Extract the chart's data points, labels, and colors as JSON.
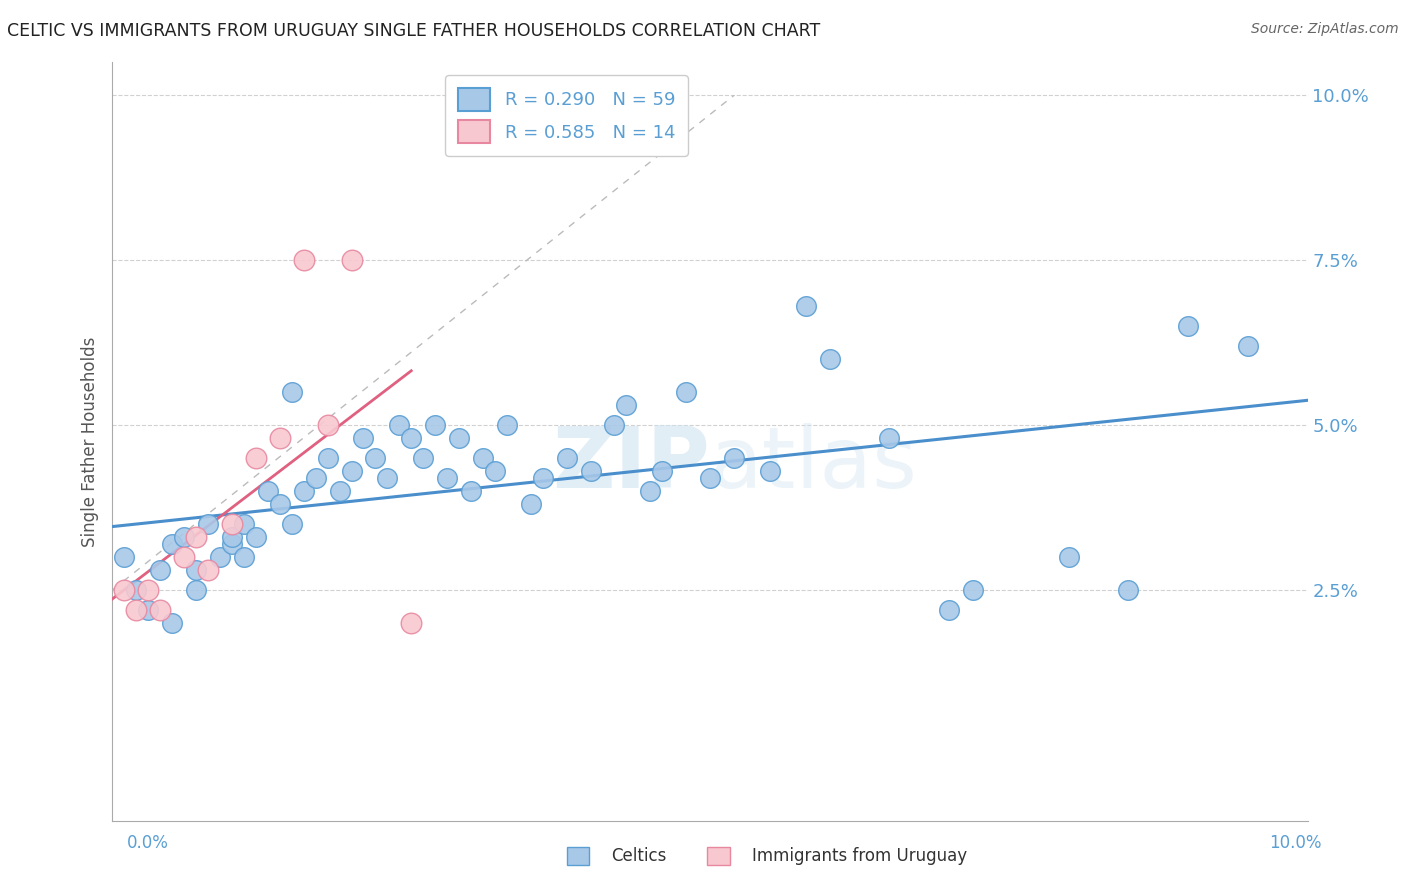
{
  "title": "CELTIC VS IMMIGRANTS FROM URUGUAY SINGLE FATHER HOUSEHOLDS CORRELATION CHART",
  "source": "Source: ZipAtlas.com",
  "ylabel": "Single Father Households",
  "legend_entry1": "R = 0.290   N = 59",
  "legend_entry2": "R = 0.585   N = 14",
  "legend_label1": "Celtics",
  "legend_label2": "Immigrants from Uruguay",
  "celtics_color": "#a8c8e8",
  "celtics_edge_color": "#5a9fd4",
  "celtics_line_color": "#4a8fcc",
  "uruguay_color": "#f8c8d0",
  "uruguay_edge_color": "#e888a0",
  "uruguay_line_color": "#e06080",
  "watermark_color": "#d0e4f0",
  "background_color": "#ffffff",
  "grid_color": "#cccccc",
  "tick_color": "#5a9fd4",
  "title_color": "#222222",
  "source_color": "#666666",
  "ylabel_color": "#555555",
  "xlim": [
    0.0,
    0.1
  ],
  "ylim": [
    -0.01,
    0.105
  ],
  "ytick_vals": [
    0.025,
    0.05,
    0.075,
    0.1
  ],
  "ytick_labels": [
    "2.5%",
    "5.0%",
    "7.5%",
    "10.0%"
  ],
  "celtics_x": [
    0.001,
    0.002,
    0.003,
    0.004,
    0.005,
    0.005,
    0.006,
    0.007,
    0.007,
    0.008,
    0.009,
    0.01,
    0.01,
    0.011,
    0.011,
    0.012,
    0.013,
    0.014,
    0.015,
    0.015,
    0.016,
    0.017,
    0.018,
    0.019,
    0.02,
    0.021,
    0.022,
    0.023,
    0.024,
    0.025,
    0.026,
    0.027,
    0.028,
    0.029,
    0.03,
    0.031,
    0.032,
    0.033,
    0.035,
    0.036,
    0.038,
    0.04,
    0.042,
    0.043,
    0.045,
    0.046,
    0.048,
    0.05,
    0.052,
    0.055,
    0.058,
    0.06,
    0.065,
    0.07,
    0.072,
    0.08,
    0.085,
    0.09,
    0.095
  ],
  "celtics_y": [
    0.03,
    0.025,
    0.022,
    0.028,
    0.032,
    0.02,
    0.033,
    0.028,
    0.025,
    0.035,
    0.03,
    0.032,
    0.033,
    0.035,
    0.03,
    0.033,
    0.04,
    0.038,
    0.035,
    0.055,
    0.04,
    0.042,
    0.045,
    0.04,
    0.043,
    0.048,
    0.045,
    0.042,
    0.05,
    0.048,
    0.045,
    0.05,
    0.042,
    0.048,
    0.04,
    0.045,
    0.043,
    0.05,
    0.038,
    0.042,
    0.045,
    0.043,
    0.05,
    0.053,
    0.04,
    0.043,
    0.055,
    0.042,
    0.045,
    0.043,
    0.068,
    0.06,
    0.048,
    0.022,
    0.025,
    0.03,
    0.025,
    0.065,
    0.062
  ],
  "uruguay_x": [
    0.001,
    0.002,
    0.003,
    0.004,
    0.006,
    0.007,
    0.008,
    0.01,
    0.012,
    0.014,
    0.016,
    0.018,
    0.02,
    0.025
  ],
  "uruguay_y": [
    0.025,
    0.022,
    0.025,
    0.022,
    0.03,
    0.033,
    0.028,
    0.035,
    0.045,
    0.048,
    0.075,
    0.05,
    0.075,
    0.02
  ]
}
